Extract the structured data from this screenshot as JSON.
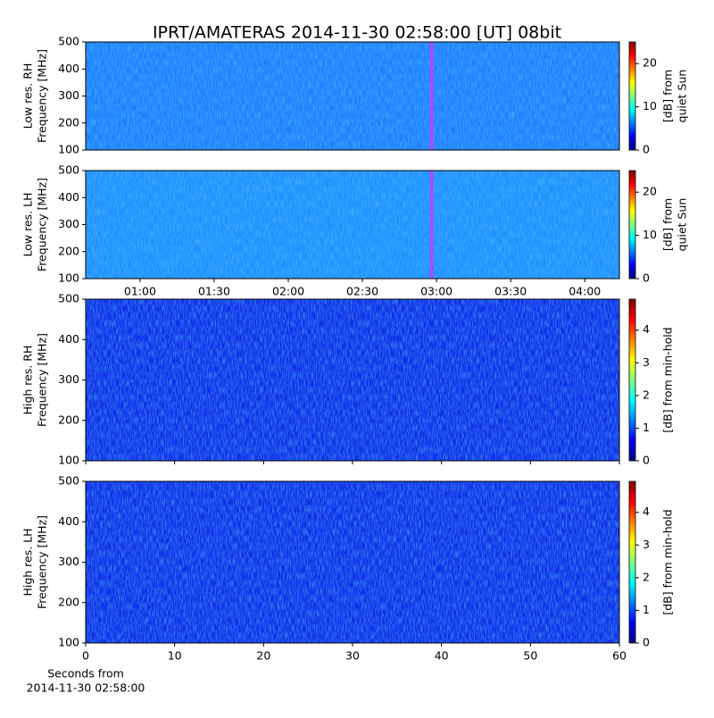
{
  "colormap": [
    "#00007f",
    "#0000ff",
    "#007fff",
    "#00ffff",
    "#7fff7f",
    "#ffff00",
    "#ff7f00",
    "#ff0000",
    "#7f0000"
  ],
  "chart_data": [
    {
      "type": "spectrogram",
      "title": "IPRT/AMATERAS 2014-11-30 02:58:00 [UT]   08bit",
      "ylabel": [
        "Low res. RH",
        "Frequency [MHz]"
      ],
      "ylim": [
        100,
        500
      ],
      "yticks": [
        100,
        200,
        300,
        400,
        500
      ],
      "xlim": [
        38,
        254
      ],
      "highlight_x": 178,
      "background": "#1f7fff",
      "colorbar": {
        "label": [
          "[dB] from",
          "quiet Sun"
        ],
        "lim": [
          0,
          25
        ],
        "ticks": [
          0,
          10,
          20
        ]
      }
    },
    {
      "type": "spectrogram",
      "ylabel": [
        "Low res. LH",
        "Frequency [MHz]"
      ],
      "ylim": [
        100,
        500
      ],
      "yticks": [
        100,
        200,
        300,
        400,
        500
      ],
      "xlim": [
        38,
        254
      ],
      "highlight_x": 178,
      "background": "#2090ff",
      "xticks": [
        {
          "value": 60,
          "label": "01:00"
        },
        {
          "value": 90,
          "label": "01:30"
        },
        {
          "value": 120,
          "label": "02:00"
        },
        {
          "value": 150,
          "label": "02:30"
        },
        {
          "value": 180,
          "label": "03:00"
        },
        {
          "value": 210,
          "label": "03:30"
        },
        {
          "value": 240,
          "label": "04:00"
        }
      ],
      "colorbar": {
        "label": [
          "[dB] from",
          "quiet Sun"
        ],
        "lim": [
          0,
          25
        ],
        "ticks": [
          0,
          10,
          20
        ]
      }
    },
    {
      "type": "spectrogram",
      "ylabel": [
        "High res. RH",
        "Frequency [MHz]"
      ],
      "ylim": [
        100,
        500
      ],
      "yticks": [
        100,
        200,
        300,
        400,
        500
      ],
      "xlim": [
        0,
        60
      ],
      "xticks": [
        0,
        10,
        20,
        30,
        40,
        50,
        60
      ],
      "xtick_labels": false,
      "background": "#1030e8",
      "colorbar": {
        "label": [
          "[dB] from min-hold"
        ],
        "lim": [
          0,
          4.95
        ],
        "ticks": [
          0,
          1,
          2,
          3,
          4
        ]
      }
    },
    {
      "type": "spectrogram",
      "ylabel": [
        "High res. LH",
        "Frequency [MHz]"
      ],
      "ylim": [
        100,
        500
      ],
      "yticks": [
        100,
        200,
        300,
        400,
        500
      ],
      "xlim": [
        0,
        60
      ],
      "xticks": [
        0,
        10,
        20,
        30,
        40,
        50,
        60
      ],
      "background": "#1030e8",
      "xlabel": [
        "Seconds from",
        "2014-11-30 02:58:00"
      ],
      "colorbar": {
        "label": [
          "[dB] from min-hold"
        ],
        "lim": [
          0,
          4.95
        ],
        "ticks": [
          0,
          1,
          2,
          3,
          4
        ]
      }
    }
  ]
}
